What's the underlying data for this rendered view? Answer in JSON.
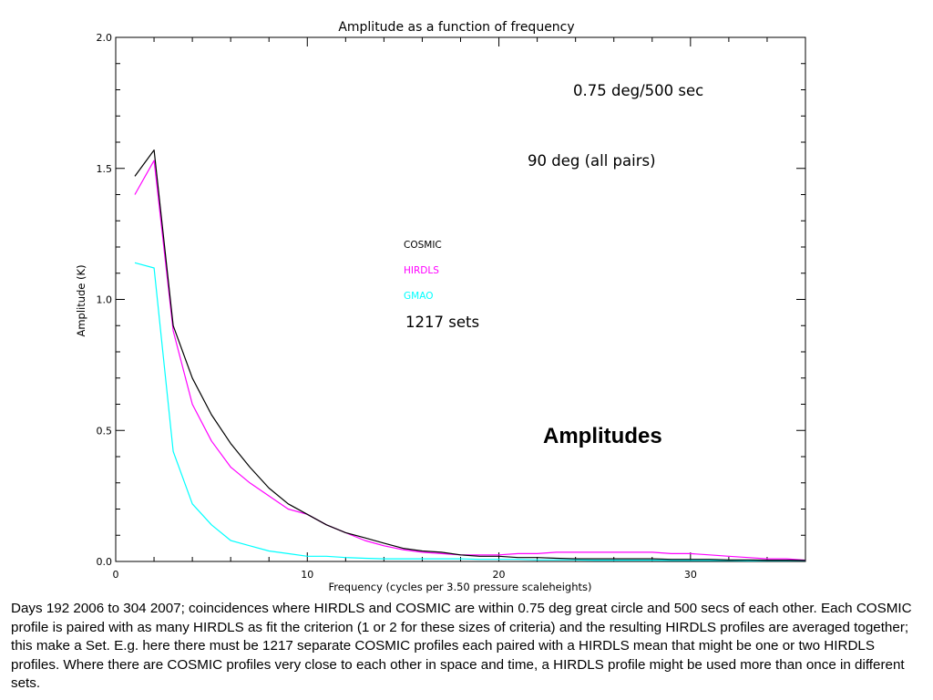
{
  "chart_data": {
    "type": "line",
    "title": "Amplitude as a function of frequency",
    "xlabel": "Frequency (cycles per 3.50 pressure scaleheights)",
    "ylabel": "Amplitude (K)",
    "xlim": [
      0,
      36
    ],
    "ylim": [
      0,
      2.0
    ],
    "x_ticks": [
      "0",
      "10",
      "20",
      "30"
    ],
    "y_ticks": [
      "0.0",
      "0.5",
      "1.0",
      "1.5",
      "2.0"
    ],
    "grid": false,
    "series": [
      {
        "name": "COSMIC",
        "color": "#000000",
        "x": [
          1,
          2,
          3,
          4,
          5,
          6,
          7,
          8,
          9,
          10,
          11,
          12,
          13,
          14,
          15,
          16,
          17,
          18,
          19,
          20,
          21,
          22,
          23,
          24,
          25,
          26,
          27,
          28,
          29,
          30,
          31,
          32,
          33,
          34,
          35,
          36
        ],
        "values": [
          1.47,
          1.57,
          0.9,
          0.7,
          0.56,
          0.45,
          0.36,
          0.28,
          0.22,
          0.18,
          0.14,
          0.11,
          0.09,
          0.07,
          0.05,
          0.04,
          0.035,
          0.025,
          0.02,
          0.02,
          0.015,
          0.015,
          0.012,
          0.01,
          0.01,
          0.01,
          0.01,
          0.01,
          0.008,
          0.008,
          0.008,
          0.006,
          0.006,
          0.005,
          0.005,
          0.004
        ]
      },
      {
        "name": "HIRDLS",
        "color": "#ff00ff",
        "x": [
          1,
          2,
          3,
          4,
          5,
          6,
          7,
          8,
          9,
          10,
          11,
          12,
          13,
          14,
          15,
          16,
          17,
          18,
          19,
          20,
          21,
          22,
          23,
          24,
          25,
          26,
          27,
          28,
          29,
          30,
          31,
          32,
          33,
          34,
          35,
          36
        ],
        "values": [
          1.4,
          1.53,
          0.88,
          0.6,
          0.46,
          0.36,
          0.3,
          0.25,
          0.2,
          0.18,
          0.14,
          0.11,
          0.08,
          0.06,
          0.045,
          0.035,
          0.03,
          0.025,
          0.025,
          0.025,
          0.03,
          0.03,
          0.035,
          0.035,
          0.035,
          0.035,
          0.035,
          0.035,
          0.03,
          0.03,
          0.025,
          0.02,
          0.015,
          0.01,
          0.01,
          0.005
        ]
      },
      {
        "name": "GMAO",
        "color": "#00ffff",
        "x": [
          1,
          2,
          3,
          4,
          5,
          6,
          7,
          8,
          9,
          10,
          11,
          12,
          13,
          14,
          15,
          16,
          17,
          18,
          19,
          20,
          21,
          22,
          23,
          24,
          25,
          26,
          27,
          28,
          29,
          30,
          31,
          32,
          33,
          34,
          35,
          36
        ],
        "values": [
          1.14,
          1.12,
          0.42,
          0.22,
          0.14,
          0.08,
          0.06,
          0.04,
          0.03,
          0.02,
          0.02,
          0.015,
          0.012,
          0.01,
          0.01,
          0.01,
          0.01,
          0.01,
          0.008,
          0.008,
          0.008,
          0.006,
          0.006,
          0.006,
          0.005,
          0.005,
          0.005,
          0.005,
          0.004,
          0.004,
          0.004,
          0.004,
          0.003,
          0.003,
          0.003,
          0.003
        ]
      }
    ],
    "annotations": [
      "0.75 deg/500 sec",
      "90 deg (all pairs)",
      "1217 sets",
      "Amplitudes"
    ],
    "legend_placement": "center"
  },
  "caption": "Days 192 2006 to 304 2007;  coincidences where HIRDLS and COSMIC are within 0.75 deg great circle and 500 secs of each other. Each COSMIC profile is paired with as many HIRDLS as fit the criterion (1 or 2 for these sizes of criteria) and the resulting HIRDLS profiles are averaged together; this make a Set.  E.g. here there must be 1217 separate COSMIC profiles each paired with a HIRDLS mean that might be one or two HIRDLS profiles.  Where there are COSMIC profiles very close to each other in space and time, a HIRDLS profile might be used more than once in different sets."
}
